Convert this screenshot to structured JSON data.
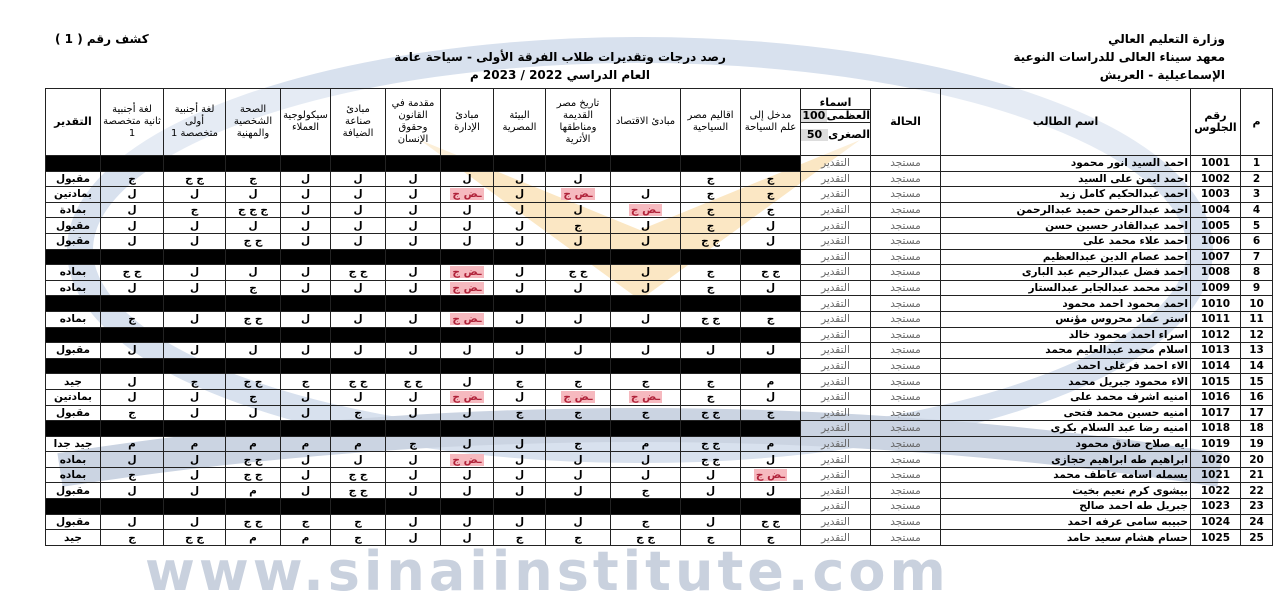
{
  "header": {
    "sheet_no": "كشف رقم ( 1 )",
    "ministry": "وزارة التعليم العالي",
    "institute": "معهد سيناء العالى للدراسات النوعية",
    "location": "الإسماعيلية - العريش",
    "title": "رصد درجات وتقديرات طلاب الفرقة الأولى - سياحة عامة",
    "year": "العام الدراسي 2022 / 2023 م"
  },
  "watermark": "www.sinaiinstitute.com",
  "table": {
    "columns": {
      "no": "م",
      "seat": "رقم الجلوس",
      "name": "اسم الطالب",
      "status": "الحالة",
      "names": "اسماء",
      "max_label": "العظمى",
      "max": 100,
      "min_label": "الصغرى",
      "min": 50,
      "courses": [
        "مدخل إلى علم السياحة",
        "اقاليم مصر السياحية",
        "مبادئ الاقتصاد",
        "تاريخ مصر القديمة ومناطقها الأثرية",
        "البيئة المصرية",
        "مبادئ الإدارة",
        "مقدمة في القانون وحقوق الإنسان",
        "مبادئ صناعة الضيافة",
        "سيكولوجية العملاء",
        "الصحة الشخصية والمهنية",
        "لغة أجنبية أولى متخصصة 1",
        "لغة أجنبية ثانية متخصصة 1"
      ],
      "result": "التقدير"
    },
    "rows": [
      {
        "no": 1,
        "seat": 1001,
        "name": "احمد السيد انور محمود",
        "status": "مستجد",
        "label": "التقدير",
        "grades": null,
        "result": null
      },
      {
        "no": 2,
        "seat": 1002,
        "name": "احمد ايمن على السيد",
        "status": "مستجد",
        "label": "التقدير",
        "grades": [
          "ج",
          "ج",
          null,
          "ل",
          "ل",
          "ل",
          "ل",
          "ل",
          "ل",
          "ج",
          "ج ج",
          "ج"
        ],
        "result": "مقبول"
      },
      {
        "no": 3,
        "seat": 1003,
        "name": "احمد عبدالحكيم كامل زيد",
        "status": "مستجد",
        "label": "التقدير",
        "grades": [
          "ج",
          "ج",
          "ل",
          "ـض ج",
          "ل",
          "ـض ج",
          "ل",
          "ل",
          "ل",
          "ل",
          "ل",
          "ل"
        ],
        "result": "بمادتين"
      },
      {
        "no": 4,
        "seat": 1004,
        "name": "احمد عبدالرحمن حميد عبدالرحمن",
        "status": "مستجد",
        "label": "التقدير",
        "grades": [
          "ج",
          "ج",
          "ـض ج",
          "ل",
          "ل",
          "ل",
          "ل",
          "ل",
          "ل",
          "ج ج ج",
          "ج",
          "ل"
        ],
        "result": "بمادة"
      },
      {
        "no": 5,
        "seat": 1005,
        "name": "احمد عبدالقادر حسين حسن",
        "status": "مستجد",
        "label": "التقدير",
        "grades": [
          "ل",
          "ج",
          "ل",
          "ج",
          "ل",
          "ل",
          "ل",
          "ل",
          "ل",
          "ل",
          "ل",
          "ل"
        ],
        "result": "مقبول"
      },
      {
        "no": 6,
        "seat": 1006,
        "name": "احمد علاء محمد على",
        "status": "مستجد",
        "label": "التقدير",
        "grades": [
          "ل",
          "ج ج",
          "ل",
          "ل",
          "ل",
          "ل",
          "ل",
          "ل",
          "ل",
          "ج ج",
          "ل",
          "ل"
        ],
        "result": "مقبول"
      },
      {
        "no": 7,
        "seat": 1007,
        "name": "احمد عصام الدين عبدالعظيم",
        "status": "مستجد",
        "label": "التقدير",
        "grades": null,
        "result": null
      },
      {
        "no": 8,
        "seat": 1008,
        "name": "احمد فضل عبدالرحيم عبد البارى",
        "status": "مستجد",
        "label": "التقدير",
        "grades": [
          "ج ج",
          "ج",
          "ل",
          "ج ج",
          "ل",
          "ـض ج",
          "ل",
          "ج ج",
          "ل",
          "ل",
          "ل",
          "ج ج"
        ],
        "result": "بماده"
      },
      {
        "no": 9,
        "seat": 1009,
        "name": "احمد محمد عبدالجابر عبدالستار",
        "status": "مستجد",
        "label": "التقدير",
        "grades": [
          "ل",
          "ج",
          "ل",
          "ل",
          "ل",
          "ـض ج",
          "ل",
          "ل",
          "ل",
          "ج",
          "ل",
          "ل"
        ],
        "result": "بماده"
      },
      {
        "no": 10,
        "seat": 1010,
        "name": "احمد محمود احمد محمود",
        "status": "مستجد",
        "label": "التقدير",
        "grades": null,
        "result": null
      },
      {
        "no": 11,
        "seat": 1011,
        "name": "استر عماد محروس مؤنس",
        "status": "مستجد",
        "label": "التقدير",
        "grades": [
          "ج",
          "ج ج",
          "ل",
          "ل",
          "ل",
          "ـض ج",
          "ل",
          "ل",
          "ل",
          "ج ج",
          "ل",
          "ج"
        ],
        "result": "بماده"
      },
      {
        "no": 12,
        "seat": 1012,
        "name": "اسراء احمد محمود خالد",
        "status": "مستجد",
        "label": "التقدير",
        "grades": null,
        "result": null
      },
      {
        "no": 13,
        "seat": 1013,
        "name": "اسلام محمد عبدالعليم محمد",
        "status": "مستجد",
        "label": "التقدير",
        "grades": [
          "ل",
          "ل",
          "ل",
          "ل",
          "ل",
          "ل",
          "ل",
          "ل",
          "ل",
          "ل",
          "ل",
          "ل"
        ],
        "result": "مقبول"
      },
      {
        "no": 14,
        "seat": 1014,
        "name": "الاء احمد فرغلى احمد",
        "status": "مستجد",
        "label": "التقدير",
        "grades": null,
        "result": null
      },
      {
        "no": 15,
        "seat": 1015,
        "name": "الاء محمود جبريل محمد",
        "status": "مستجد",
        "label": "التقدير",
        "grades": [
          "م",
          "ج",
          "ج",
          "ج",
          "ج",
          "ل",
          "ج ج",
          "ج ج",
          "ج",
          "ج ج",
          "ج",
          "ل"
        ],
        "result": "جيد"
      },
      {
        "no": 16,
        "seat": 1016,
        "name": "امنيه اشرف محمد على",
        "status": "مستجد",
        "label": "التقدير",
        "grades": [
          "ل",
          "ج",
          "ـض ج",
          "ـض ج",
          "ل",
          "ـض ج",
          "ل",
          "ل",
          "ل",
          "ج",
          "ل",
          "ل"
        ],
        "result": "بمادتين"
      },
      {
        "no": 17,
        "seat": 1017,
        "name": "امنيه حسين محمد فتحى",
        "status": "مستجد",
        "label": "التقدير",
        "grades": [
          "ج",
          "ج ج",
          "ج",
          "ج",
          "ج",
          "ل",
          "ل",
          "ج",
          "ل",
          "ل",
          "ل",
          "ج"
        ],
        "result": "مقبول"
      },
      {
        "no": 18,
        "seat": 1018,
        "name": "امنيه رضا عبد السلام بكرى",
        "status": "مستجد",
        "label": "التقدير",
        "grades": null,
        "result": null
      },
      {
        "no": 19,
        "seat": 1019,
        "name": "ايه صلاح صادق محمود",
        "status": "مستجد",
        "label": "التقدير",
        "grades": [
          "م",
          "ج ج",
          "م",
          "ج",
          "ل",
          "ل",
          "ج",
          "م",
          "م",
          "م",
          "م",
          "م"
        ],
        "result": "جيد جدا"
      },
      {
        "no": 20,
        "seat": 1020,
        "name": "ابراهيم طه ابراهيم حجازى",
        "status": "مستجد",
        "label": "التقدير",
        "grades": [
          "ل",
          "ج ج",
          "ل",
          "ل",
          "ل",
          "ـض ج",
          "ل",
          "ل",
          "ل",
          "ج ج",
          "ل",
          "ل"
        ],
        "result": "بماده"
      },
      {
        "no": 21,
        "seat": 1021,
        "name": "بسمله اسامه عاطف محمد",
        "status": "مستجد",
        "label": "التقدير",
        "grades": [
          "ـض ج",
          "ل",
          "ل",
          "ل",
          "ل",
          "ل",
          "ل",
          "ج ج",
          "ل",
          "ج ج",
          "ل",
          "ج"
        ],
        "result": "بماده"
      },
      {
        "no": 22,
        "seat": 1022,
        "name": "بيشوى كرم نعيم بخيت",
        "status": "مستجد",
        "label": "التقدير",
        "grades": [
          "ل",
          "ل",
          "ج",
          "ل",
          "ل",
          "ل",
          "ل",
          "ج ج",
          "ل",
          "م",
          "ل",
          "ل"
        ],
        "result": "مقبول"
      },
      {
        "no": 23,
        "seat": 1023,
        "name": "جبريل طه احمد صالح",
        "status": "مستجد",
        "label": "التقدير",
        "grades": null,
        "result": null
      },
      {
        "no": 24,
        "seat": 1024,
        "name": "حبيبه سامى عرفه احمد",
        "status": "مستجد",
        "label": "التقدير",
        "grades": [
          "ج ج",
          "ل",
          "ج",
          "ل",
          "ل",
          "ل",
          "ل",
          "ج",
          "ج",
          "ج ج",
          "ل",
          "ل"
        ],
        "result": "مقبول"
      },
      {
        "no": 25,
        "seat": 1025,
        "name": "حسام هشام سعيد حامد",
        "status": "مستجد",
        "label": "التقدير",
        "grades": [
          "ج",
          "ج",
          "ج ج",
          "ج",
          "ج",
          "ل",
          "ل",
          "ج",
          "م",
          "م",
          "ج ج",
          "ج"
        ],
        "result": "جيد"
      }
    ]
  }
}
